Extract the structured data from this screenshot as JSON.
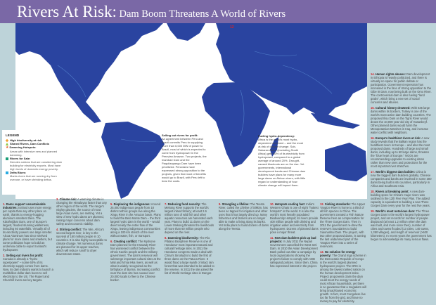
{
  "header": {
    "title_main": "Rivers At Risk",
    "title_sep": ":",
    "title_sub": " Dam Boom Threatens A World of Rivers",
    "color": "#7a68a6"
  },
  "map": {
    "land_color": "#2a44a0",
    "ocean_color": "#ffffff",
    "callouts": [
      {
        "title": "Selling out rivers for profit:",
        "text": "An agreement between Peru and Brazil commits Peru to supplying more than 6,000 MW of power to Brazil, most of which is expected to come from hydropower in the Peruvian Amazon. Two projects, the Inambari Dam and the Paquitzapango Dam have been prioritized. Peruvians have expressed strong opposition to the projects, given that most of benefits would go to Brazil, with Peru left to bear the costs."
      },
      {
        "title": "Fueling hydro-dependency:",
        "text": "Africa is the world's most hydro-dependent continent – and the most at-risk of climate change. Sub-Saharan Africa (excluding South Africa) gets 60% of its electricity from hydropower, compared to a global average of around 20%. Drought-caused blackouts are on the rise. Yet governments, international development banks and Chinese dam builders have plans for many more large dams on African rivers, with little regard or understanding of how climate change will impact them."
      }
    ],
    "marker_label": "12"
  },
  "legend": {
    "title": "LEGEND",
    "items": [
      {
        "label": "High biodiversity at risk",
        "desc": "",
        "color": "#f0a030",
        "icon": "diamond-icon"
      },
      {
        "label": "Shared Rivers, Dam Conflicts",
        "desc": "",
        "color": "#8cc63f",
        "icon": "triangle-icon"
      },
      {
        "label": "Damming Hotspots:",
        "desc": "Areas with intensive new and planned damming.",
        "color": "#e8541e",
        "icon": "star-icon"
      },
      {
        "label": "Rivers for Sale:",
        "desc": "Denotes nations that are considering dam building for electricity exports. Most have high levels of domestic energy poverty.",
        "color": "#1a9e77",
        "icon": "dollar-icon"
      },
      {
        "label": "Delta Blues:",
        "desc": "Marks rivers that are running dry from overuse, or have shrinking deltas.",
        "color": "#29abe2",
        "icon": "square-icon"
      }
    ]
  },
  "items": [
    {
      "n": "1.",
      "h": "Dams support unsustainable industries:",
      "t": " Iceland uses more energy per capita than any other place on earth, thanks to energy-hogging aluminum smelters there. The Kárahnjúkar Dam, one of Europe's largest, flooded stunning wilderness, including 60 waterfalls. Virtually all of its electricity powers one large smelter. Alcoa Aluminum has since shelved plans for more dams and smelters, but some politicians hope to build an undersea cable to export Iceland's hydropower."
    },
    {
      "n": "2.",
      "h": "Selling out rivers for profit:",
      "t": " Canada is already a \"hydro superpower\" – some 60% of its electricity supply comes from dams. Now, its dam industry wants to launch a multibillion-dollar dam boom to sell electricity to the US. The Rupert and Churchill rivers are key targets."
    },
    {
      "n": "3.",
      "h": "Climate risk:",
      "t": " A warming climate is changing the Himalayas faster than any other region of the world. The range's mighty glaciers, the source of most large Asian rivers, are melting. Yet a slew of new hydro dams are planned, raising major concerns about dam safety and economic viability."
    },
    {
      "n": "4.",
      "h": "Stirring conflict:",
      "t": " The Nile, Africa's second largest river, is key to the survival of 160 million people in 10 countries. It is also highly susceptible to climate change. Yet numerous dams are planned for its upper reaches, which will reduce runoff to dryer downstream states."
    },
    {
      "n": "5.",
      "h": "Displacing the indigenous:",
      "t": " Around 25,000 indigenous people from 18 distinct ethnic groups live along the Xingu River in the Amazon basin. Plans to build the Belo Monte Dam – the third largest hydro dam in the world – would divert nearly the entire flow of the Xingu, leaving indigenous communities along a 100 km stretch of the river without water, fish, or transport."
    },
    {
      "n": "6.",
      "h": "Creating conflict:",
      "t": " The Myitsone Dam planned for the Irrawady River has worsened conflict between the ethnic Kachin people and the military government. The dam's reservoir will submerge important cultural sites at the Mali and N'mai Hka rivers, as well as what is widely recognized as the birthplace of Burma. Increasing conflict near the dam site has caused over 20,000 locals to flee to the Chinese border."
    },
    {
      "n": "7.",
      "h": "Reducing food security:",
      "t": " The Mekong River supports the world's largest inland fishery; at least 2.6 million tons of wild fish and other aquatic resources are harvested each year. Plans to build 11 dams on the Lower Mekong threaten the livelihoods of more than 60 million people who depend on the river."
    },
    {
      "n": "8.",
      "h": "Damming biodiversity:",
      "t": " The Río Plátano Biosphere Reserve is one of Honduras' most important natural and cultural heritage sites. In 2011 the Honduran congress made a deal with China's Sinohydro to build the first of three dams on the Patuca River. It would flood a large swath of intact rain forest that was intended to be added to the reserve. In 2011 the site joined the list of World Heritage sites in Danger."
    },
    {
      "n": "9.",
      "h": "Strangling a lifeline:",
      "t": " The Teesta River, called the Lifeline of Sikkim, has been so tapped for irrigation and other uses that it has largely dried up. Many fishermen and farmers are no longer able to make a living along its banks. Yet India plans to build dozens of dams along the Teesta."
    },
    {
      "n": "10.",
      "h": "Hotspots cooling fast:",
      "t": " India's Western Ghats is one of eight \"hottest hotspots\" in the world. It is also the world's most heavily populated Biodiversity Hotspot; its rivers provide 400 million people with drinking and irrigation water and electricity from hydropower. Dozens of planned dams pose a major threat."
    },
    {
      "n": "11.",
      "h": "New dam builders pick up bad projects:",
      "t": " In July 2011 the Nepali Government cancelled the West Seti Dam. In 2010 the Asian Development Bank pulled out after a campaign by local organizations showing the project's failure to comply with ADB safeguard policies. Since then, China has expressed interest in the project."
    },
    {
      "n": "12.",
      "h": "Sinking standards:",
      "t": " The Upper Yangtze River is home to a third of all fish species in China. The government created a Fish Nature Reserve here as compensation for the Three Gorges Dam. Then in 2011 the government re-drew the reserve's boundaries to build Xiaonanhai Dam. The project, with two other proposed dams, is turning the last undammed part of the Yangtze River into a series of reservoirs."
    },
    {
      "n": "13.",
      "h": "No solution for energy poverty:",
      "t": " The Grand Inga scheme in the Democratic Republic of Congo is the world's largest planned hydropower project. The DRC is among the lowest ranked nation on the human development index. Project proponents claim the dam could meet the energy needs of most African households, yet there is no guarantee that a megadam will bring broad-based economic growth. In fact, most Congolese live too far from the grid, and have no money to pay for electricity."
    },
    {
      "n": "14.",
      "h": "Human rights abuses:",
      "t": " Dam development in Ethiopia is heavily politicized, and there is virtually no space for public debate or participation. Government repression has increased in the face of strong opposition to the Gibe III Dam, now being built on the Omo River. The controversial dam is also fueling \"land grabs\", which bring a new set of social concerns and abuses."
    },
    {
      "n": "15.",
      "h": "Cultural history drowned:",
      "t": " With 635 large dams within its borders, Turkey is one of the world's most active dam building countries. The proposed Ilisu Dam on the Tigris River would drown the 10,000 year-old city of Hasankeyf. Other planned dams would harm the Mesopotamian Marshes in Iraq, and increase water conflict with neighbors."
    },
    {
      "n": "16.",
      "h": "Europe's healthiest rivers at risk:",
      "t": " A new study reveals that the Balkan region has the healthiest rivers in Europe – and also the most proposed dams. Hundreds of large and small dams, including up to 60 large dams, threaten the \"blue heart of Europe.\" NGOs are recommending upgrades to existing dams rather than new ones and protections for the most important river stretches."
    },
    {
      "n": "17.",
      "h": "World's biggest dam builder:",
      "t": " China is now the biggest dam builders globally. Chinese companies and banks are involved in some 300 dams being built in 66 countries, particularly in Africa and Southeast Asia."
    },
    {
      "n": "18.",
      "h": "Rivers at breaking point:",
      "t": " A new dam-building spree for China's major rivers was outlined in the 12th Five Year Plan. The added capacity is equivalent to building a new Three Gorges Dam every year for the next five years."
    },
    {
      "n": "19.",
      "h": "World's most notorious dam:",
      "t": " The Three Gorges Dam is the world's largest hydropower project, and set records for number of people displaced (at least 1.2 million when the dam was built, and more since then), number of cities and towns flooded (13 cities, 140 towns, 1,350 villages), and length of reservoir (>600 kilometers). In recent years the government has begun to acknowledge its many serious flaws."
    }
  ]
}
